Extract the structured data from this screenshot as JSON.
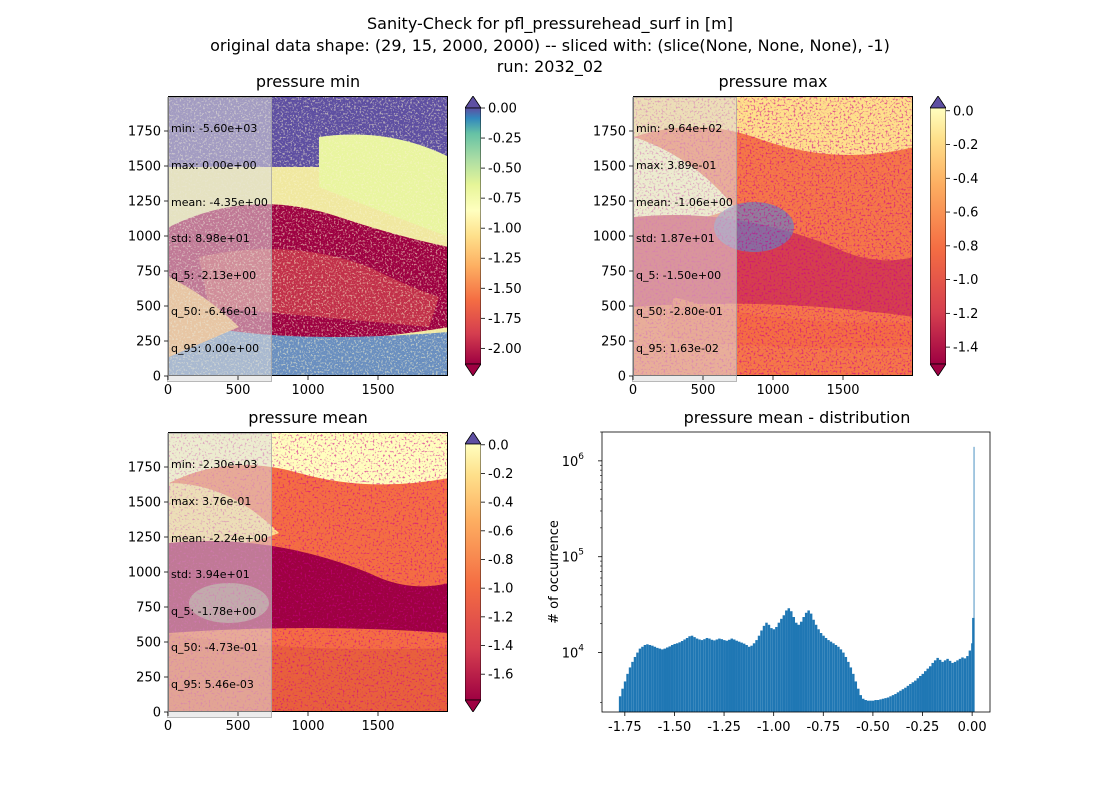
{
  "figure": {
    "title_lines": [
      "Sanity-Check for pfl_pressurehead_surf in [m]",
      "original data shape: (29, 15, 2000, 2000) -- sliced with: (slice(None, None, None), -1)",
      "run: 2032_02"
    ]
  },
  "panels": [
    {
      "title": "pressure min",
      "stats": [
        "min: -5.60e+03",
        "max: 0.00e+00",
        "mean: -4.35e+00",
        "std: 8.98e+01",
        "q_5: -2.13e+00",
        "q_50: -6.46e-01",
        "q_95: 0.00e+00"
      ],
      "xticks": [
        "0",
        "500",
        "1000",
        "1500"
      ],
      "yticks": [
        "0",
        "250",
        "500",
        "750",
        "1000",
        "1250",
        "1500",
        "1750"
      ],
      "colorbar": {
        "ticks": [
          "0.00",
          "-0.25",
          "-0.50",
          "-0.75",
          "-1.00",
          "-1.25",
          "-1.50",
          "-1.75",
          "-2.00"
        ],
        "vmin": -2.13,
        "vmax": 0.0
      }
    },
    {
      "title": "pressure max",
      "stats": [
        "min: -9.64e+02",
        "max: 3.89e-01",
        "mean: -1.06e+00",
        "std: 1.87e+01",
        "q_5: -1.50e+00",
        "q_50: -2.80e-01",
        "q_95: 1.63e-02"
      ],
      "xticks": [
        "0",
        "500",
        "1000",
        "1500"
      ],
      "yticks": [
        "0",
        "250",
        "500",
        "750",
        "1000",
        "1250",
        "1500",
        "1750"
      ],
      "colorbar": {
        "ticks": [
          "0.0",
          "-0.2",
          "-0.4",
          "-0.6",
          "-0.8",
          "-1.0",
          "-1.2",
          "-1.4"
        ],
        "vmin": -1.5,
        "vmax": 0.0163
      }
    },
    {
      "title": "pressure mean",
      "stats": [
        "min: -2.30e+03",
        "max: 3.76e-01",
        "mean: -2.24e+00",
        "std: 3.94e+01",
        "q_5: -1.78e+00",
        "q_50: -4.73e-01",
        "q_95: 5.46e-03"
      ],
      "xticks": [
        "0",
        "500",
        "1000",
        "1500"
      ],
      "yticks": [
        "0",
        "250",
        "500",
        "750",
        "1000",
        "1250",
        "1500",
        "1750"
      ],
      "colorbar": {
        "ticks": [
          "0.0",
          "-0.2",
          "-0.4",
          "-0.6",
          "-0.8",
          "-1.0",
          "-1.2",
          "-1.4",
          "-1.6"
        ],
        "vmin": -1.78,
        "vmax": 0.00546
      }
    }
  ],
  "chart_data": {
    "type": "bar",
    "title": "pressure mean - distribution",
    "ylabel": "# of occurrence",
    "xlabel": "",
    "yscale": "log",
    "ylim": [
      2400,
      2000000
    ],
    "xlim": [
      -1.865,
      0.09
    ],
    "xticks": [
      "-1.75",
      "-1.50",
      "-1.25",
      "-1.00",
      "-0.75",
      "-0.50",
      "-0.25",
      "0.00"
    ],
    "yticks": [
      "10^4",
      "10^5",
      "10^6"
    ],
    "color": "#1f77b4",
    "bin_width": 0.0125,
    "bins": [
      [
        -1.78,
        3500
      ],
      [
        -1.7675,
        4200
      ],
      [
        -1.755,
        5000
      ],
      [
        -1.7425,
        6000
      ],
      [
        -1.73,
        7000
      ],
      [
        -1.7175,
        8000
      ],
      [
        -1.705,
        9000
      ],
      [
        -1.6925,
        10000
      ],
      [
        -1.68,
        11000
      ],
      [
        -1.6675,
        11500
      ],
      [
        -1.655,
        12000
      ],
      [
        -1.6425,
        12200
      ],
      [
        -1.63,
        12000
      ],
      [
        -1.6175,
        11800
      ],
      [
        -1.605,
        11500
      ],
      [
        -1.5925,
        11200
      ],
      [
        -1.58,
        11000
      ],
      [
        -1.5675,
        10800
      ],
      [
        -1.555,
        11000
      ],
      [
        -1.5425,
        11300
      ],
      [
        -1.53,
        11600
      ],
      [
        -1.5175,
        12000
      ],
      [
        -1.505,
        12300
      ],
      [
        -1.4925,
        12500
      ],
      [
        -1.48,
        12800
      ],
      [
        -1.4675,
        13200
      ],
      [
        -1.455,
        13700
      ],
      [
        -1.4425,
        14200
      ],
      [
        -1.43,
        14800
      ],
      [
        -1.4175,
        15000
      ],
      [
        -1.405,
        14500
      ],
      [
        -1.3925,
        14000
      ],
      [
        -1.38,
        13700
      ],
      [
        -1.3675,
        13500
      ],
      [
        -1.355,
        13800
      ],
      [
        -1.3425,
        14200
      ],
      [
        -1.33,
        14000
      ],
      [
        -1.3175,
        13600
      ],
      [
        -1.305,
        13400
      ],
      [
        -1.2925,
        13700
      ],
      [
        -1.28,
        14000
      ],
      [
        -1.2675,
        13800
      ],
      [
        -1.255,
        13500
      ],
      [
        -1.2425,
        13300
      ],
      [
        -1.23,
        13600
      ],
      [
        -1.2175,
        14000
      ],
      [
        -1.205,
        13700
      ],
      [
        -1.1925,
        13300
      ],
      [
        -1.18,
        13000
      ],
      [
        -1.1675,
        12700
      ],
      [
        -1.155,
        12400
      ],
      [
        -1.1425,
        12000
      ],
      [
        -1.13,
        11500
      ],
      [
        -1.1175,
        11800
      ],
      [
        -1.105,
        12500
      ],
      [
        -1.0925,
        13500
      ],
      [
        -1.08,
        15000
      ],
      [
        -1.0675,
        17000
      ],
      [
        -1.055,
        19000
      ],
      [
        -1.0425,
        20500
      ],
      [
        -1.03,
        19500
      ],
      [
        -1.0175,
        18000
      ],
      [
        -1.005,
        17500
      ],
      [
        -0.9925,
        18500
      ],
      [
        -0.98,
        20500
      ],
      [
        -0.9675,
        22500
      ],
      [
        -0.955,
        24500
      ],
      [
        -0.9425,
        27500
      ],
      [
        -0.93,
        29000
      ],
      [
        -0.9175,
        27000
      ],
      [
        -0.905,
        23500
      ],
      [
        -0.8925,
        20500
      ],
      [
        -0.88,
        19500
      ],
      [
        -0.8675,
        21000
      ],
      [
        -0.855,
        23500
      ],
      [
        -0.8425,
        26000
      ],
      [
        -0.83,
        27500
      ],
      [
        -0.8175,
        25500
      ],
      [
        -0.805,
        22000
      ],
      [
        -0.7925,
        19500
      ],
      [
        -0.78,
        17500
      ],
      [
        -0.7675,
        16000
      ],
      [
        -0.755,
        15000
      ],
      [
        -0.7425,
        14200
      ],
      [
        -0.73,
        13500
      ],
      [
        -0.7175,
        13000
      ],
      [
        -0.705,
        12500
      ],
      [
        -0.6925,
        12000
      ],
      [
        -0.68,
        11500
      ],
      [
        -0.6675,
        10800
      ],
      [
        -0.655,
        10000
      ],
      [
        -0.6425,
        9000
      ],
      [
        -0.63,
        8000
      ],
      [
        -0.6175,
        7000
      ],
      [
        -0.605,
        6000
      ],
      [
        -0.5925,
        5000
      ],
      [
        -0.58,
        4200
      ],
      [
        -0.5675,
        3600
      ],
      [
        -0.555,
        3300
      ],
      [
        -0.5425,
        3200
      ],
      [
        -0.53,
        3150
      ],
      [
        -0.5175,
        3150
      ],
      [
        -0.505,
        3150
      ],
      [
        -0.4925,
        3200
      ],
      [
        -0.48,
        3200
      ],
      [
        -0.4675,
        3250
      ],
      [
        -0.455,
        3300
      ],
      [
        -0.4425,
        3350
      ],
      [
        -0.43,
        3400
      ],
      [
        -0.4175,
        3500
      ],
      [
        -0.405,
        3600
      ],
      [
        -0.3925,
        3700
      ],
      [
        -0.38,
        3850
      ],
      [
        -0.3675,
        4000
      ],
      [
        -0.355,
        4150
      ],
      [
        -0.3425,
        4300
      ],
      [
        -0.33,
        4500
      ],
      [
        -0.3175,
        4700
      ],
      [
        -0.305,
        4900
      ],
      [
        -0.2925,
        5100
      ],
      [
        -0.28,
        5400
      ],
      [
        -0.2675,
        5700
      ],
      [
        -0.255,
        6000
      ],
      [
        -0.2425,
        6400
      ],
      [
        -0.23,
        6800
      ],
      [
        -0.2175,
        7200
      ],
      [
        -0.205,
        7800
      ],
      [
        -0.1925,
        8300
      ],
      [
        -0.18,
        8800
      ],
      [
        -0.1675,
        8400
      ],
      [
        -0.155,
        8000
      ],
      [
        -0.1425,
        8300
      ],
      [
        -0.13,
        8600
      ],
      [
        -0.1175,
        8200
      ],
      [
        -0.105,
        7800
      ],
      [
        -0.0925,
        8000
      ],
      [
        -0.08,
        8300
      ],
      [
        -0.0675,
        8600
      ],
      [
        -0.055,
        8900
      ],
      [
        -0.0425,
        8700
      ],
      [
        -0.03,
        9200
      ],
      [
        -0.0175,
        10500
      ],
      [
        -0.005,
        12500
      ],
      [
        0.0,
        23000
      ],
      [
        0.0075,
        1400000
      ]
    ]
  }
}
